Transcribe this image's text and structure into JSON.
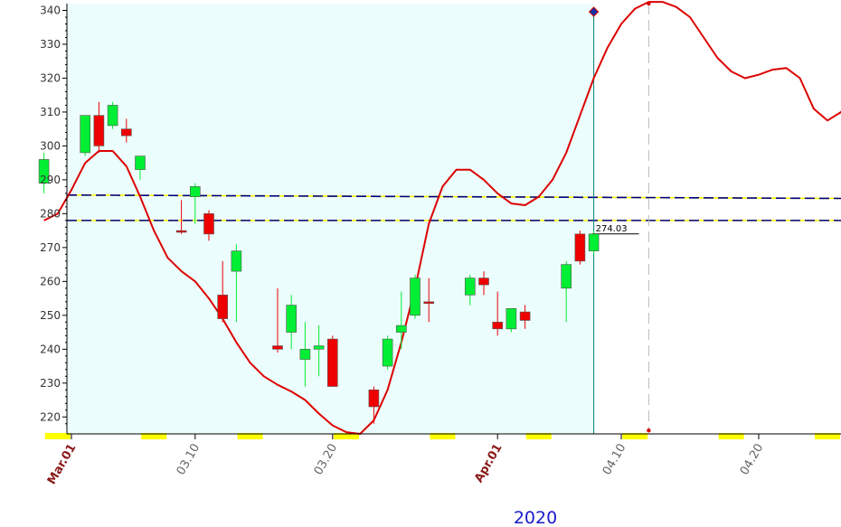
{
  "chart_data": {
    "type": "candlestick",
    "year_label": "2020",
    "ylim": [
      215,
      342
    ],
    "y_ticks": [
      220,
      230,
      240,
      250,
      260,
      270,
      280,
      290,
      300,
      310,
      320,
      330,
      340
    ],
    "x_tick_labels": [
      {
        "label": "Mar.01",
        "date": "2020-03-01",
        "style": "month"
      },
      {
        "label": "03.10",
        "date": "2020-03-10",
        "style": "day"
      },
      {
        "label": "03.20",
        "date": "2020-03-20",
        "style": "day"
      },
      {
        "label": "Apr.01",
        "date": "2020-04-01",
        "style": "month"
      },
      {
        "label": "04.10",
        "date": "2020-04-10",
        "style": "day"
      },
      {
        "label": "04.20",
        "date": "2020-04-20",
        "style": "day"
      }
    ],
    "candles": [
      {
        "date": "2020-02-28",
        "open": 289,
        "high": 298,
        "low": 286,
        "close": 296
      },
      {
        "date": "2020-03-02",
        "open": 298,
        "high": 309,
        "low": 297,
        "close": 309
      },
      {
        "date": "2020-03-03",
        "open": 309,
        "high": 313,
        "low": 298,
        "close": 300
      },
      {
        "date": "2020-03-04",
        "open": 306,
        "high": 313,
        "low": 305,
        "close": 312
      },
      {
        "date": "2020-03-05",
        "open": 305,
        "high": 308,
        "low": 301,
        "close": 303
      },
      {
        "date": "2020-03-06",
        "open": 293,
        "high": 297,
        "low": 290,
        "close": 297
      },
      {
        "date": "2020-03-09",
        "open": 275,
        "high": 284,
        "low": 274,
        "close": 274.5
      },
      {
        "date": "2020-03-10",
        "open": 285,
        "high": 289,
        "low": 277,
        "close": 288
      },
      {
        "date": "2020-03-11",
        "open": 280,
        "high": 281,
        "low": 272,
        "close": 274
      },
      {
        "date": "2020-03-12",
        "open": 256,
        "high": 266,
        "low": 248,
        "close": 249
      },
      {
        "date": "2020-03-13",
        "open": 263,
        "high": 271,
        "low": 248,
        "close": 269
      },
      {
        "date": "2020-03-16",
        "open": 241,
        "high": 258,
        "low": 239,
        "close": 240
      },
      {
        "date": "2020-03-17",
        "open": 245,
        "high": 256,
        "low": 240,
        "close": 253
      },
      {
        "date": "2020-03-18",
        "open": 237,
        "high": 248,
        "low": 229,
        "close": 240
      },
      {
        "date": "2020-03-19",
        "open": 240,
        "high": 247,
        "low": 232,
        "close": 241
      },
      {
        "date": "2020-03-20",
        "open": 243,
        "high": 244,
        "low": 229,
        "close": 229
      },
      {
        "date": "2020-03-23",
        "open": 228,
        "high": 229,
        "low": 218,
        "close": 223
      },
      {
        "date": "2020-03-24",
        "open": 235,
        "high": 244,
        "low": 234,
        "close": 243
      },
      {
        "date": "2020-03-25",
        "open": 245,
        "high": 257,
        "low": 240,
        "close": 247
      },
      {
        "date": "2020-03-26",
        "open": 250,
        "high": 262,
        "low": 249,
        "close": 261
      },
      {
        "date": "2020-03-27",
        "open": 254,
        "high": 261,
        "low": 248,
        "close": 253.5
      },
      {
        "date": "2020-03-30",
        "open": 256,
        "high": 262,
        "low": 253,
        "close": 261
      },
      {
        "date": "2020-03-31",
        "open": 261,
        "high": 263,
        "low": 256,
        "close": 259
      },
      {
        "date": "2020-04-01",
        "open": 248,
        "high": 257,
        "low": 244,
        "close": 246
      },
      {
        "date": "2020-04-02",
        "open": 246,
        "high": 252,
        "low": 245,
        "close": 252
      },
      {
        "date": "2020-04-03",
        "open": 251,
        "high": 253,
        "low": 246,
        "close": 248.5
      },
      {
        "date": "2020-04-06",
        "open": 258,
        "high": 266,
        "low": 248,
        "close": 265
      },
      {
        "date": "2020-04-07",
        "open": 274,
        "high": 275,
        "low": 265,
        "close": 266
      },
      {
        "date": "2020-04-08",
        "open": 269,
        "high": 275,
        "low": 268,
        "close": 274
      }
    ],
    "line_series": {
      "color": "#dd0000",
      "points": [
        [
          "2020-02-28",
          278
        ],
        [
          "2020-02-29",
          280
        ],
        [
          "2020-03-01",
          287
        ],
        [
          "2020-03-02",
          295
        ],
        [
          "2020-03-03",
          298.5
        ],
        [
          "2020-03-04",
          298.5
        ],
        [
          "2020-03-05",
          294
        ],
        [
          "2020-03-06",
          285
        ],
        [
          "2020-03-07",
          275
        ],
        [
          "2020-03-08",
          267
        ],
        [
          "2020-03-09",
          263
        ],
        [
          "2020-03-10",
          260
        ],
        [
          "2020-03-11",
          255
        ],
        [
          "2020-03-12",
          249
        ],
        [
          "2020-03-13",
          242
        ],
        [
          "2020-03-14",
          236
        ],
        [
          "2020-03-15",
          232
        ],
        [
          "2020-03-16",
          229.5
        ],
        [
          "2020-03-17",
          227.5
        ],
        [
          "2020-03-18",
          225
        ],
        [
          "2020-03-19",
          221
        ],
        [
          "2020-03-20",
          217.5
        ],
        [
          "2020-03-21",
          215.5
        ],
        [
          "2020-03-22",
          215
        ],
        [
          "2020-03-23",
          219
        ],
        [
          "2020-03-24",
          228
        ],
        [
          "2020-03-25",
          242
        ],
        [
          "2020-03-26",
          258
        ],
        [
          "2020-03-27",
          277
        ],
        [
          "2020-03-28",
          288
        ],
        [
          "2020-03-29",
          293
        ],
        [
          "2020-03-30",
          293
        ],
        [
          "2020-03-31",
          290
        ],
        [
          "2020-04-01",
          286
        ],
        [
          "2020-04-02",
          283
        ],
        [
          "2020-04-03",
          282.5
        ],
        [
          "2020-04-04",
          285
        ],
        [
          "2020-04-05",
          290
        ],
        [
          "2020-04-06",
          298
        ],
        [
          "2020-04-07",
          309
        ],
        [
          "2020-04-08",
          320
        ],
        [
          "2020-04-09",
          329
        ],
        [
          "2020-04-10",
          336
        ],
        [
          "2020-04-11",
          340.5
        ],
        [
          "2020-04-12",
          342.5
        ],
        [
          "2020-04-13",
          342.5
        ],
        [
          "2020-04-14",
          341
        ],
        [
          "2020-04-15",
          338
        ],
        [
          "2020-04-16",
          332
        ],
        [
          "2020-04-17",
          326
        ],
        [
          "2020-04-18",
          322
        ],
        [
          "2020-04-19",
          320
        ],
        [
          "2020-04-20",
          321
        ],
        [
          "2020-04-21",
          322.5
        ],
        [
          "2020-04-22",
          323
        ],
        [
          "2020-04-23",
          320
        ],
        [
          "2020-04-24",
          311
        ],
        [
          "2020-04-25",
          307.5
        ],
        [
          "2020-04-26",
          310
        ],
        [
          "2020-04-27",
          318
        ],
        [
          "2020-04-28",
          320
        ]
      ]
    },
    "horizontal_lines": [
      {
        "value": 285.5,
        "value_end": 284.5,
        "style": "navy-yellow-dash"
      },
      {
        "value": 278,
        "value_end": 278,
        "style": "navy-yellow-dash"
      }
    ],
    "last_price": {
      "label": "274.03",
      "value": 274.03
    },
    "cursor_date": "2020-04-08",
    "projection_date": "2020-04-12",
    "projection_high": 342,
    "projection_low": 216,
    "shaded_until": "2020-04-08",
    "colors": {
      "up": "#00ee33",
      "down": "#ee0000",
      "line": "#dd0000",
      "shade": "#ecfdfd",
      "cursor": "#008080",
      "weekend": "#ffff00",
      "year": "#1a1acc",
      "month": "#8b1a1a"
    },
    "weekend_markers": [
      "2020-02-29",
      "2020-03-07",
      "2020-03-14",
      "2020-03-21",
      "2020-03-28",
      "2020-04-04",
      "2020-04-11",
      "2020-04-18",
      "2020-04-25"
    ]
  }
}
